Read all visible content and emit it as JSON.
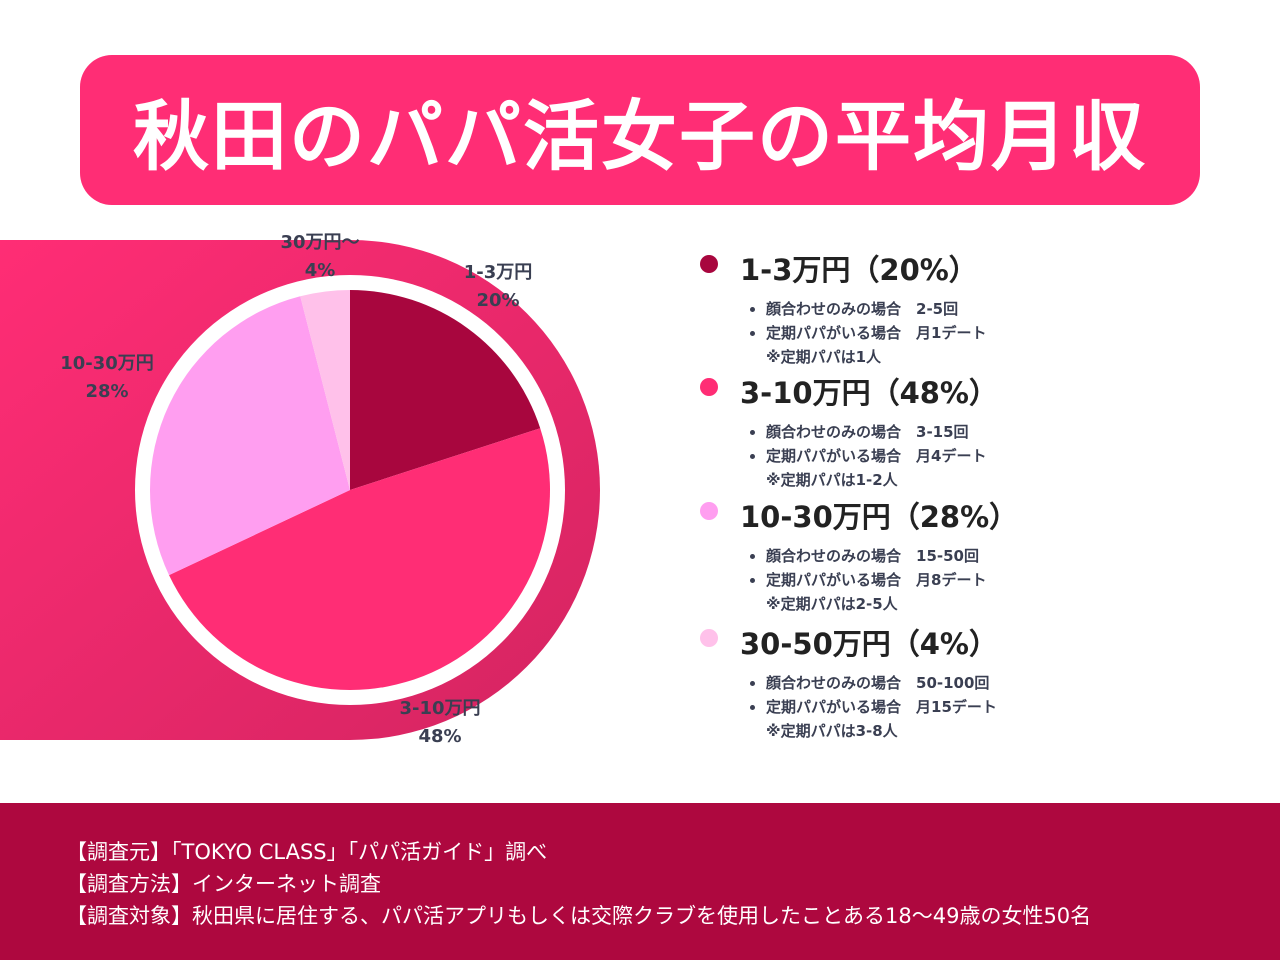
{
  "title": "秋田のパパ活女子の平均月収",
  "chart_data": {
    "type": "pie",
    "start": "12 o'clock, clockwise",
    "slices": [
      {
        "label": "1-3万円",
        "value": 20,
        "value_label": "20%",
        "color": "#a8063e"
      },
      {
        "label": "3-10万円",
        "value": 48,
        "value_label": "48%",
        "color": "#ff2d75"
      },
      {
        "label": "10-30万円",
        "value": 28,
        "value_label": "28%",
        "color": "#ff9ef0"
      },
      {
        "label": "30万円～",
        "value": 4,
        "value_label": "4%",
        "color": "#ffc1ea"
      }
    ]
  },
  "legend": [
    {
      "heading": "1-3万円（20%）",
      "color": "#a8063e",
      "bullets": [
        "顔合わせのみの場合　2-5回",
        "定期パパがいる場合　月1デート"
      ],
      "note": "※定期パパは1人"
    },
    {
      "heading": "3-10万円（48%）",
      "color": "#ff2d75",
      "bullets": [
        "顔合わせのみの場合　3-15回",
        "定期パパがいる場合　月4デート"
      ],
      "note": "※定期パパは1-2人"
    },
    {
      "heading": "10-30万円（28%）",
      "color": "#ff9ef0",
      "bullets": [
        "顔合わせのみの場合　15-50回",
        "定期パパがいる場合　月8デート"
      ],
      "note": "※定期パパは2-5人"
    },
    {
      "heading": "30-50万円（4%）",
      "color": "#ffc1ea",
      "bullets": [
        "顔合わせのみの場合　50-100回",
        "定期パパがいる場合　月15デート"
      ],
      "note": "※定期パパは3-8人"
    }
  ],
  "footer": [
    "【調査元】「TOKYO CLASS」「パパ活ガイド」調べ",
    "【調査方法】インターネット調査",
    "【調査対象】秋田県に居住する、パパ活アプリもしくは交際クラブを使用したことある18～49歳の女性50名"
  ],
  "colors": {
    "brand": "#ff2d75",
    "footer_bg": "#ae083f"
  }
}
